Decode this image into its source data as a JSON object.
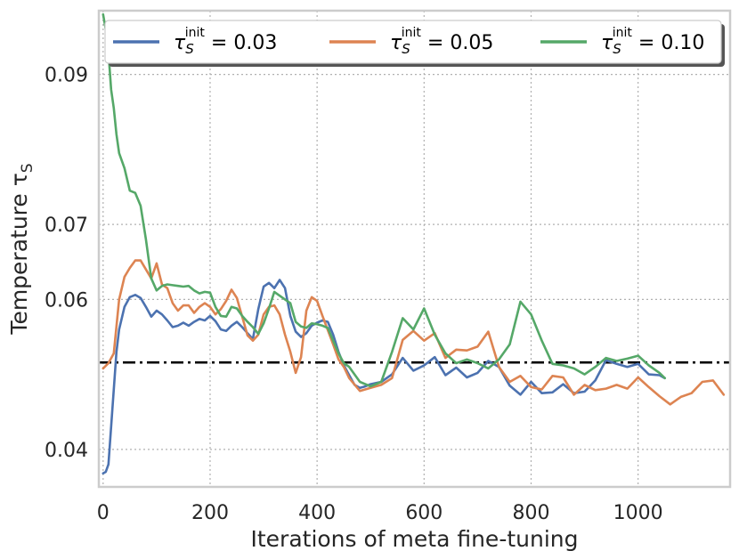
{
  "chart_data": {
    "type": "line",
    "title": "",
    "xlabel": "Iterations of meta fine-tuning",
    "ylabel": "Temperature τ",
    "ylabel_sub": "S",
    "xlim": [
      -8,
      1172
    ],
    "ylim": [
      0.035,
      0.0985
    ],
    "xticks": [
      0,
      200,
      400,
      600,
      800,
      1000
    ],
    "yticks": [
      0.04,
      0.06,
      0.07,
      0.09
    ],
    "xtick_labels": [
      "0",
      "200",
      "400",
      "600",
      "800",
      "1000"
    ],
    "ytick_labels": [
      "0.04",
      "0.06",
      "0.07",
      "0.09"
    ],
    "grid": true,
    "legend_position": "top",
    "reference_line": {
      "y": 0.0516,
      "style": "dash-dot",
      "color": "#000000"
    },
    "series": [
      {
        "name": "τ_S^init = 0.03",
        "legend_symbol": "τ",
        "legend_sub": "S",
        "legend_sup": "init",
        "legend_value": " = 0.03",
        "color": "#4c72b0",
        "x": [
          0,
          5,
          10,
          15,
          20,
          25,
          30,
          40,
          50,
          60,
          70,
          80,
          90,
          100,
          110,
          120,
          130,
          140,
          150,
          160,
          170,
          180,
          190,
          200,
          210,
          220,
          230,
          240,
          250,
          260,
          270,
          280,
          290,
          300,
          310,
          320,
          330,
          340,
          350,
          360,
          370,
          380,
          390,
          400,
          410,
          420,
          430,
          440,
          450,
          460,
          470,
          480,
          490,
          500,
          520,
          540,
          560,
          580,
          600,
          620,
          640,
          660,
          680,
          700,
          720,
          740,
          760,
          780,
          800,
          820,
          840,
          860,
          880,
          900,
          920,
          940,
          960,
          980,
          1000,
          1020,
          1040,
          1050
        ],
        "y": [
          0.0368,
          0.037,
          0.038,
          0.043,
          0.048,
          0.053,
          0.056,
          0.059,
          0.0603,
          0.0606,
          0.0602,
          0.059,
          0.0577,
          0.0585,
          0.058,
          0.0572,
          0.0563,
          0.0565,
          0.0569,
          0.0565,
          0.057,
          0.0574,
          0.0572,
          0.0578,
          0.0571,
          0.056,
          0.0558,
          0.0565,
          0.057,
          0.0563,
          0.0555,
          0.0547,
          0.0587,
          0.0617,
          0.0622,
          0.0615,
          0.0626,
          0.0615,
          0.0578,
          0.0557,
          0.055,
          0.0555,
          0.0565,
          0.0569,
          0.0572,
          0.057,
          0.0553,
          0.053,
          0.0512,
          0.0499,
          0.0486,
          0.0482,
          0.0484,
          0.0487,
          0.049,
          0.05,
          0.0522,
          0.0505,
          0.0512,
          0.0523,
          0.0499,
          0.0509,
          0.0496,
          0.0502,
          0.0518,
          0.051,
          0.0485,
          0.0473,
          0.049,
          0.0475,
          0.0476,
          0.0487,
          0.0475,
          0.0477,
          0.0492,
          0.0519,
          0.0514,
          0.051,
          0.0514,
          0.05,
          0.0499,
          0.0495
        ]
      },
      {
        "name": "τ_S^init = 0.05",
        "legend_symbol": "τ",
        "legend_sub": "S",
        "legend_sup": "init",
        "legend_value": " = 0.05",
        "color": "#dd8452",
        "x": [
          0,
          10,
          20,
          30,
          40,
          50,
          60,
          70,
          80,
          90,
          100,
          110,
          120,
          130,
          140,
          150,
          160,
          170,
          180,
          190,
          200,
          210,
          220,
          230,
          240,
          250,
          260,
          270,
          280,
          290,
          300,
          310,
          320,
          330,
          340,
          350,
          360,
          370,
          380,
          390,
          400,
          410,
          420,
          430,
          440,
          450,
          460,
          480,
          500,
          520,
          540,
          560,
          580,
          600,
          620,
          640,
          660,
          680,
          700,
          720,
          740,
          760,
          780,
          800,
          820,
          840,
          860,
          880,
          900,
          920,
          940,
          960,
          980,
          1000,
          1020,
          1040,
          1060,
          1080,
          1100,
          1120,
          1140,
          1160
        ],
        "y": [
          0.0508,
          0.0515,
          0.0528,
          0.06,
          0.063,
          0.0642,
          0.0652,
          0.0652,
          0.064,
          0.0628,
          0.0648,
          0.062,
          0.0615,
          0.0595,
          0.0585,
          0.0592,
          0.0592,
          0.0582,
          0.059,
          0.0595,
          0.059,
          0.058,
          0.0587,
          0.0598,
          0.0613,
          0.0602,
          0.0577,
          0.0552,
          0.0545,
          0.0553,
          0.058,
          0.059,
          0.0592,
          0.058,
          0.0553,
          0.053,
          0.0502,
          0.0523,
          0.0585,
          0.0603,
          0.0598,
          0.0578,
          0.0559,
          0.054,
          0.052,
          0.051,
          0.0495,
          0.0478,
          0.0482,
          0.0486,
          0.0495,
          0.0546,
          0.0558,
          0.0545,
          0.0555,
          0.0522,
          0.0533,
          0.0532,
          0.0537,
          0.0557,
          0.051,
          0.049,
          0.0498,
          0.0483,
          0.048,
          0.0498,
          0.0496,
          0.0473,
          0.0486,
          0.0479,
          0.0481,
          0.0486,
          0.0481,
          0.0496,
          0.0483,
          0.0471,
          0.046,
          0.047,
          0.0475,
          0.049,
          0.0492,
          0.0473
        ]
      },
      {
        "name": "τ_S^init = 0.10",
        "legend_symbol": "τ",
        "legend_sub": "S",
        "legend_sup": "init",
        "legend_value": " = 0.10",
        "color": "#55a868",
        "x": [
          0,
          5,
          10,
          15,
          20,
          25,
          30,
          40,
          50,
          60,
          70,
          80,
          90,
          100,
          110,
          120,
          130,
          140,
          150,
          160,
          170,
          180,
          190,
          200,
          210,
          220,
          230,
          240,
          250,
          260,
          270,
          280,
          290,
          300,
          310,
          320,
          330,
          340,
          350,
          360,
          370,
          380,
          390,
          400,
          410,
          420,
          430,
          440,
          450,
          460,
          480,
          500,
          520,
          540,
          560,
          580,
          600,
          620,
          640,
          660,
          680,
          700,
          720,
          740,
          760,
          780,
          800,
          820,
          840,
          860,
          880,
          900,
          920,
          940,
          960,
          980,
          1000,
          1020,
          1040,
          1050
        ],
        "y": [
          0.098,
          0.096,
          0.093,
          0.088,
          0.0855,
          0.082,
          0.0795,
          0.0775,
          0.0745,
          0.0742,
          0.0725,
          0.068,
          0.0628,
          0.0612,
          0.0618,
          0.062,
          0.0619,
          0.0618,
          0.0617,
          0.0618,
          0.0612,
          0.0608,
          0.061,
          0.0609,
          0.059,
          0.0578,
          0.0577,
          0.059,
          0.0588,
          0.0578,
          0.057,
          0.0563,
          0.0554,
          0.0568,
          0.0588,
          0.061,
          0.0605,
          0.06,
          0.0595,
          0.057,
          0.0564,
          0.0562,
          0.0568,
          0.0567,
          0.0565,
          0.0562,
          0.0545,
          0.0528,
          0.0515,
          0.051,
          0.049,
          0.0484,
          0.049,
          0.053,
          0.0575,
          0.056,
          0.0588,
          0.0553,
          0.0528,
          0.0515,
          0.052,
          0.0515,
          0.0508,
          0.052,
          0.054,
          0.0597,
          0.058,
          0.0545,
          0.0514,
          0.0512,
          0.0508,
          0.05,
          0.051,
          0.0522,
          0.0518,
          0.0521,
          0.0525,
          0.0512,
          0.0502,
          0.0495
        ]
      }
    ]
  }
}
